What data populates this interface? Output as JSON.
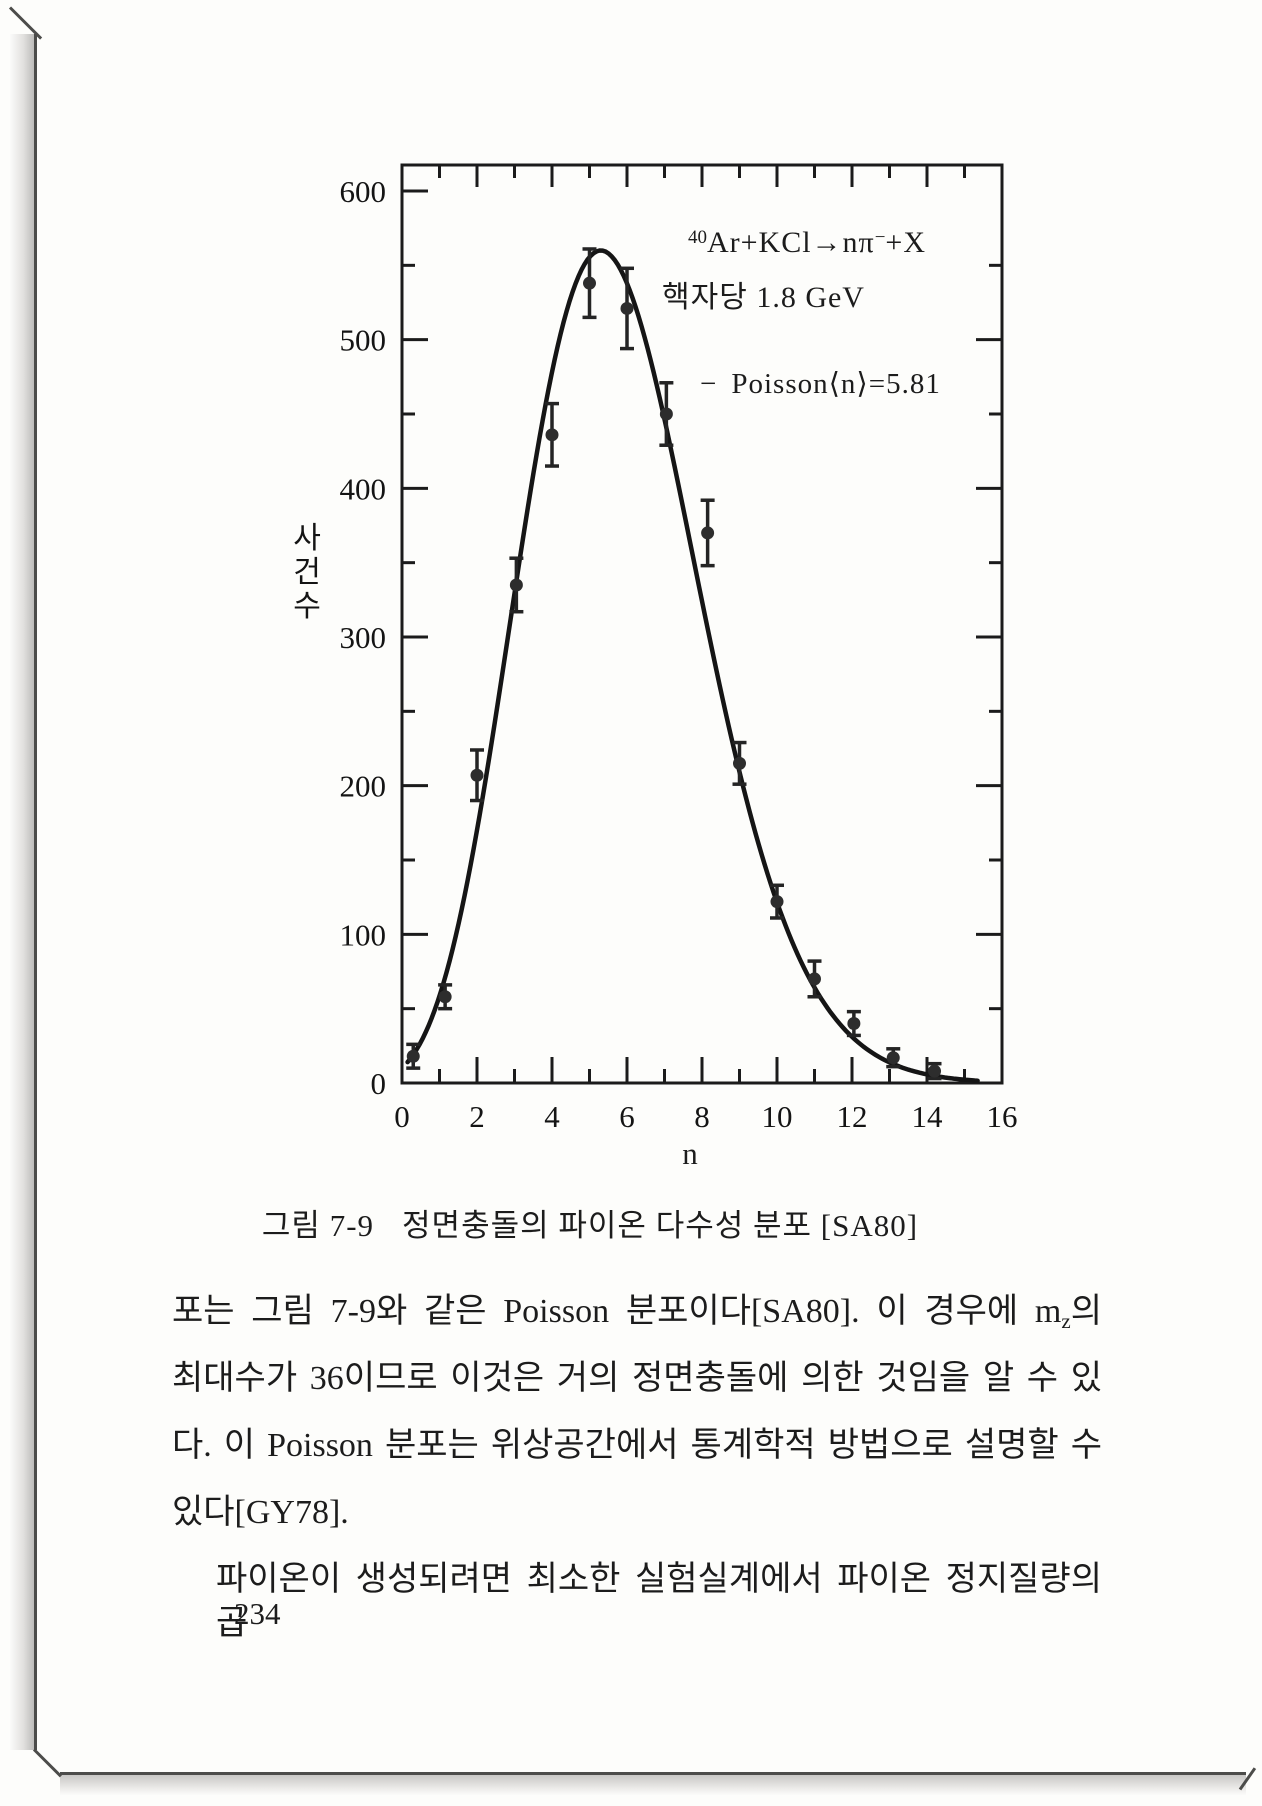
{
  "page": {
    "number": "234"
  },
  "figure": {
    "annotations": {
      "reaction": {
        "mass_number": "40",
        "main": "Ar+KCl→nπ",
        "charge": "−",
        "post": "+X"
      },
      "beam_energy": "핵자당 1.8 GeV",
      "legend_dash": "−",
      "legend_label": "Poisson⟨n⟩=5.81"
    },
    "caption": {
      "label": "그림 7-9",
      "text": "정면충돌의 파이온 다수성 분포 [SA80]"
    }
  },
  "chart_data": {
    "type": "scatter",
    "title": "",
    "xlabel": "n",
    "ylabel": "사건수",
    "xlim": [
      0,
      16
    ],
    "ylim": [
      0,
      600
    ],
    "x_major_ticks": [
      0,
      2,
      4,
      6,
      8,
      10,
      12,
      14,
      16
    ],
    "y_major_ticks": [
      0,
      100,
      200,
      300,
      400,
      500,
      600
    ],
    "grid": false,
    "legend_position": "upper-right",
    "points": [
      {
        "n": 0.3,
        "y": 18,
        "err": 8
      },
      {
        "n": 1.15,
        "y": 58,
        "err": 8
      },
      {
        "n": 2.0,
        "y": 207,
        "err": 17
      },
      {
        "n": 3.05,
        "y": 335,
        "err": 18
      },
      {
        "n": 4.0,
        "y": 436,
        "err": 21
      },
      {
        "n": 5.0,
        "y": 538,
        "err": 23
      },
      {
        "n": 6.0,
        "y": 521,
        "err": 27
      },
      {
        "n": 7.05,
        "y": 450,
        "err": 21
      },
      {
        "n": 8.15,
        "y": 370,
        "err": 22
      },
      {
        "n": 9.0,
        "y": 215,
        "err": 14
      },
      {
        "n": 10.0,
        "y": 122,
        "err": 11
      },
      {
        "n": 11.0,
        "y": 70,
        "err": 12
      },
      {
        "n": 12.05,
        "y": 40,
        "err": 8
      },
      {
        "n": 13.1,
        "y": 17,
        "err": 6
      },
      {
        "n": 14.2,
        "y": 8,
        "err": 5
      }
    ],
    "curve": {
      "type": "poisson",
      "lambda": 5.81,
      "peak": 560,
      "x_start": 0.15,
      "x_end": 15.4
    }
  },
  "body": {
    "p1_line1_pre": "포는 그림 7-9와 같은 Poisson 분포이다[SA80]. 이 경우에 m",
    "p1_line1_sub": "z",
    "p1_line1_post": "의",
    "p1_line2": "최대수가 36이므로 이것은 거의 정면충돌에 의한 것임을 알 수 있",
    "p1_line3": "다. 이 Poisson 분포는 위상공간에서 통계학적 방법으로 설명할 수",
    "p1_line4": "있다[GY78].",
    "p2_line1": "파이온이 생성되려면 최소한 실험실계에서 파이온 정지질량의 곱"
  }
}
